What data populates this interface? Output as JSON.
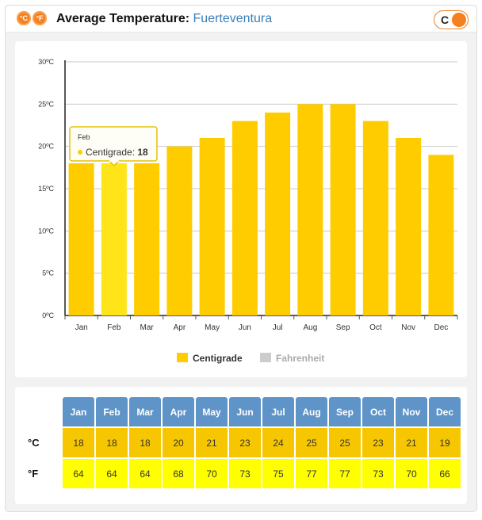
{
  "header": {
    "title_label": "Average Temperature:",
    "location": "Fuerteventura",
    "icon_c": "°C",
    "icon_f": "°F",
    "toggle_label": "C"
  },
  "colors": {
    "bar": "#ffcc00",
    "bar_hover": "#ffe419",
    "fahrenheit_legend": "#cccccc",
    "header_blue": "#5f94c8",
    "row_c": "#f6c700",
    "row_f": "#ffff00",
    "accent": "#f5801f"
  },
  "chart_data": {
    "type": "bar",
    "categories": [
      "Jan",
      "Feb",
      "Mar",
      "Apr",
      "May",
      "Jun",
      "Jul",
      "Aug",
      "Sep",
      "Oct",
      "Nov",
      "Dec"
    ],
    "series": [
      {
        "name": "Centigrade",
        "values": [
          18,
          18,
          18,
          20,
          21,
          23,
          24,
          25,
          25,
          23,
          21,
          19
        ]
      }
    ],
    "legend": [
      {
        "name": "Centigrade",
        "active": true
      },
      {
        "name": "Fahrenheit",
        "active": false
      }
    ],
    "legend_position": "bottom-center",
    "ylim": [
      0,
      30
    ],
    "yticks": [
      0,
      5,
      10,
      15,
      20,
      25,
      30
    ],
    "ytick_labels": [
      "0ºC",
      "5ºC",
      "10ºC",
      "15ºC",
      "20ºC",
      "25ºC",
      "30ºC"
    ],
    "grid": true,
    "tooltip": {
      "category": "Feb",
      "series": "Centigrade",
      "value": 18
    }
  },
  "table": {
    "months": [
      "Jan",
      "Feb",
      "Mar",
      "Apr",
      "May",
      "Jun",
      "Jul",
      "Aug",
      "Sep",
      "Oct",
      "Nov",
      "Dec"
    ],
    "c_label": "°C",
    "f_label": "°F",
    "celsius": [
      18,
      18,
      18,
      20,
      21,
      23,
      24,
      25,
      25,
      23,
      21,
      19
    ],
    "fahrenheit": [
      64,
      64,
      64,
      68,
      70,
      73,
      75,
      77,
      77,
      73,
      70,
      66
    ]
  }
}
